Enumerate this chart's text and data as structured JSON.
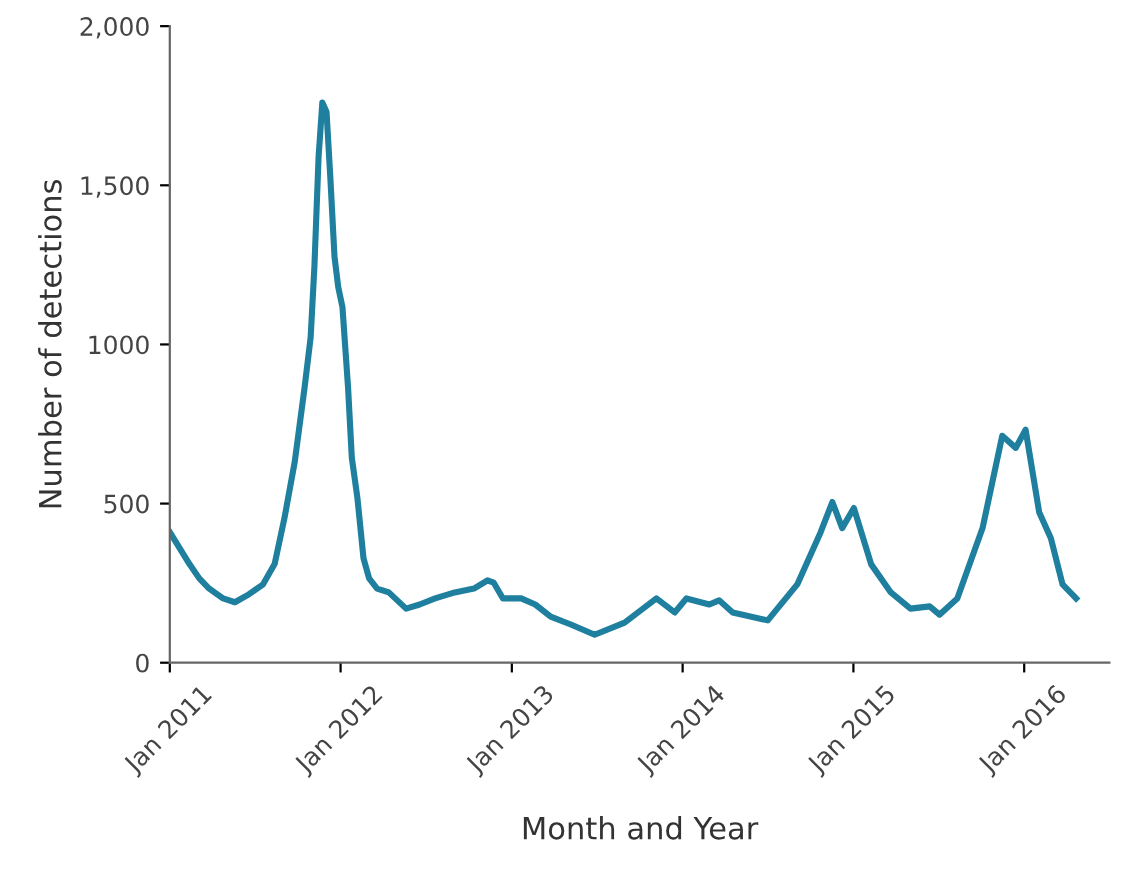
{
  "chart_data": {
    "type": "line",
    "xlabel": "Month and Year",
    "ylabel": "Number of detections",
    "x": [
      "2011-01-01",
      "2011-01-22",
      "2011-02-12",
      "2011-03-05",
      "2011-03-26",
      "2011-04-25",
      "2011-05-20",
      "2011-06-19",
      "2011-07-19",
      "2011-08-13",
      "2011-09-03",
      "2011-09-25",
      "2011-10-16",
      "2011-10-29",
      "2011-11-06",
      "2011-11-15",
      "2011-11-23",
      "2011-12-02",
      "2011-12-10",
      "2011-12-19",
      "2011-12-27",
      "2012-01-05",
      "2012-01-17",
      "2012-01-25",
      "2012-02-06",
      "2012-02-19",
      "2012-03-02",
      "2012-03-19",
      "2012-04-13",
      "2012-05-20",
      "2012-06-18",
      "2012-07-21",
      "2012-09-01",
      "2012-10-12",
      "2012-11-10",
      "2012-11-23",
      "2012-12-13",
      "2013-01-21",
      "2013-02-20",
      "2013-03-25",
      "2013-05-07",
      "2013-06-27",
      "2013-08-30",
      "2013-11-06",
      "2013-12-15",
      "2014-01-09",
      "2014-02-27",
      "2014-03-20",
      "2014-04-18",
      "2014-07-02",
      "2014-09-03",
      "2014-10-23",
      "2014-11-17",
      "2014-12-08",
      "2015-01-02",
      "2015-02-08",
      "2015-03-22",
      "2015-05-03",
      "2015-06-13",
      "2015-07-04",
      "2015-08-11",
      "2015-10-04",
      "2015-11-15",
      "2015-12-14",
      "2016-01-04",
      "2016-02-02",
      "2016-02-27",
      "2016-03-23",
      "2016-04-21"
    ],
    "series": [
      {
        "color": "#1f7f9f",
        "values": [
          410,
          360,
          310,
          265,
          233,
          202,
          190,
          215,
          246,
          310,
          454,
          631,
          864,
          1022,
          1243,
          1590,
          1760,
          1730,
          1527,
          1275,
          1180,
          1117,
          864,
          644,
          517,
          328,
          265,
          233,
          221,
          170,
          183,
          202,
          221,
          233,
          259,
          252,
          202,
          202,
          183,
          145,
          120,
          88,
          126,
          202,
          158,
          202,
          183,
          196,
          158,
          133,
          246,
          410,
          505,
          423,
          486,
          309,
          221,
          170,
          177,
          151,
          202,
          423,
          713,
          675,
          732,
          473,
          391,
          246,
          202
        ]
      }
    ],
    "xlim": [
      "2011-01-01",
      "2016-07-01"
    ],
    "xticks": [
      {
        "value": "2011-01-01",
        "label": "Jan 2011"
      },
      {
        "value": "2012-01-01",
        "label": "Jan 2012"
      },
      {
        "value": "2013-01-01",
        "label": "Jan 2013"
      },
      {
        "value": "2014-01-01",
        "label": "Jan 2014"
      },
      {
        "value": "2015-01-01",
        "label": "Jan 2015"
      },
      {
        "value": "2016-01-01",
        "label": "Jan 2016"
      }
    ],
    "ylim": [
      0,
      2000
    ],
    "yticks": [
      0,
      500,
      1000,
      {
        "value": 1500,
        "label": "1,500"
      },
      {
        "value": 2000,
        "label": "2,000"
      }
    ],
    "grid": false,
    "marker": "none",
    "line_style": "solid"
  }
}
